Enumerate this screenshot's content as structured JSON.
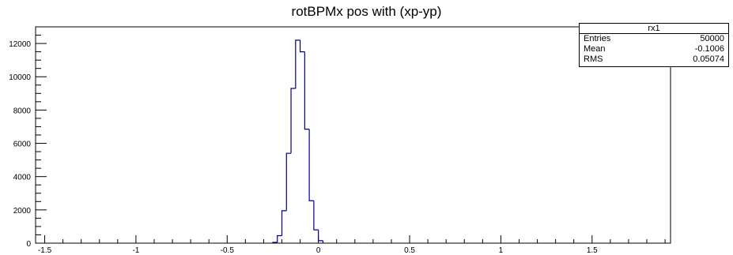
{
  "title": "rotBPMx pos with (xp-yp)",
  "stats": {
    "name": "rx1",
    "rows": [
      {
        "label": "Entries",
        "value": "50000"
      },
      {
        "label": "Mean",
        "value": "-0.1006"
      },
      {
        "label": "RMS",
        "value": "0.05074"
      }
    ]
  },
  "chart_data": {
    "type": "histogram",
    "title": "rotBPMx pos with (xp-yp)",
    "xlabel": "",
    "ylabel": "",
    "xlim": [
      -1.55,
      1.93
    ],
    "ylim": [
      0,
      13000
    ],
    "x_ticks": [
      -1.5,
      -1,
      -0.5,
      0,
      0.5,
      1,
      1.5
    ],
    "x_tick_labels": [
      "-1.5",
      "-1",
      "-0.5",
      "0",
      "0.5",
      "1",
      "1.5"
    ],
    "y_ticks": [
      0,
      2000,
      4000,
      6000,
      8000,
      10000,
      12000
    ],
    "y_tick_labels": [
      "0",
      "2000",
      "4000",
      "6000",
      "8000",
      "10000",
      "12000"
    ],
    "bin_width": 0.025,
    "bins": [
      {
        "x0": -0.25,
        "value": 50
      },
      {
        "x0": -0.225,
        "value": 450
      },
      {
        "x0": -0.2,
        "value": 1950
      },
      {
        "x0": -0.175,
        "value": 5400
      },
      {
        "x0": -0.15,
        "value": 9300
      },
      {
        "x0": -0.125,
        "value": 12200
      },
      {
        "x0": -0.1,
        "value": 11500
      },
      {
        "x0": -0.075,
        "value": 6850
      },
      {
        "x0": -0.05,
        "value": 2550
      },
      {
        "x0": -0.025,
        "value": 800
      },
      {
        "x0": 0.0,
        "value": 150
      }
    ],
    "line_color": "#00008b",
    "grid": false
  }
}
